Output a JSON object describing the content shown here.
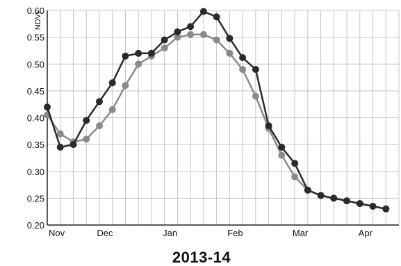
{
  "chart_data": {
    "type": "line",
    "title": "",
    "caption": "2013-14",
    "xlabel": "",
    "ylabel": "NDVI",
    "ylim": [
      0.2,
      0.6
    ],
    "yticks": [
      "0.20",
      "0.25",
      "0.30",
      "0.35",
      "0.40",
      "0.45",
      "0.50",
      "0.55",
      "0.60"
    ],
    "xticks": [
      {
        "label": "Nov",
        "x": 0
      },
      {
        "label": "Dec",
        "x": 4
      },
      {
        "label": "Jan",
        "x": 9
      },
      {
        "label": "Feb",
        "x": 14
      },
      {
        "label": "Mar",
        "x": 19
      },
      {
        "label": "Apr",
        "x": 24
      }
    ],
    "x_range": [
      0,
      27
    ],
    "grid": true,
    "series": [
      {
        "name": "",
        "color": "#2a2a2a",
        "x": [
          0,
          1,
          2,
          3,
          4,
          5,
          6,
          7,
          8,
          9,
          10,
          11,
          12,
          13,
          14,
          15,
          16,
          17,
          18,
          19,
          20,
          21,
          22,
          23,
          24,
          25,
          26
        ],
        "values": [
          0.42,
          0.345,
          0.35,
          0.395,
          0.43,
          0.465,
          0.515,
          0.52,
          0.52,
          0.545,
          0.56,
          0.57,
          0.598,
          0.588,
          0.548,
          0.512,
          0.49,
          0.385,
          0.345,
          0.315,
          0.265,
          0.255,
          0.25,
          0.245,
          0.24,
          0.235,
          0.23
        ]
      },
      {
        "name": "",
        "color": "#8a8a8a",
        "x": [
          0,
          1,
          2,
          3,
          4,
          5,
          6,
          7,
          8,
          9,
          10,
          11,
          12,
          13,
          14,
          15,
          16,
          17,
          18,
          19,
          20,
          21,
          22,
          23,
          24,
          25,
          26
        ],
        "values": [
          0.405,
          0.37,
          0.355,
          0.36,
          0.385,
          0.415,
          0.46,
          0.5,
          0.515,
          0.53,
          0.55,
          0.555,
          0.555,
          0.545,
          0.52,
          0.49,
          0.44,
          0.38,
          0.33,
          0.29,
          0.265,
          0.255,
          0.25,
          0.245,
          0.24,
          0.235,
          0.23
        ]
      }
    ]
  }
}
